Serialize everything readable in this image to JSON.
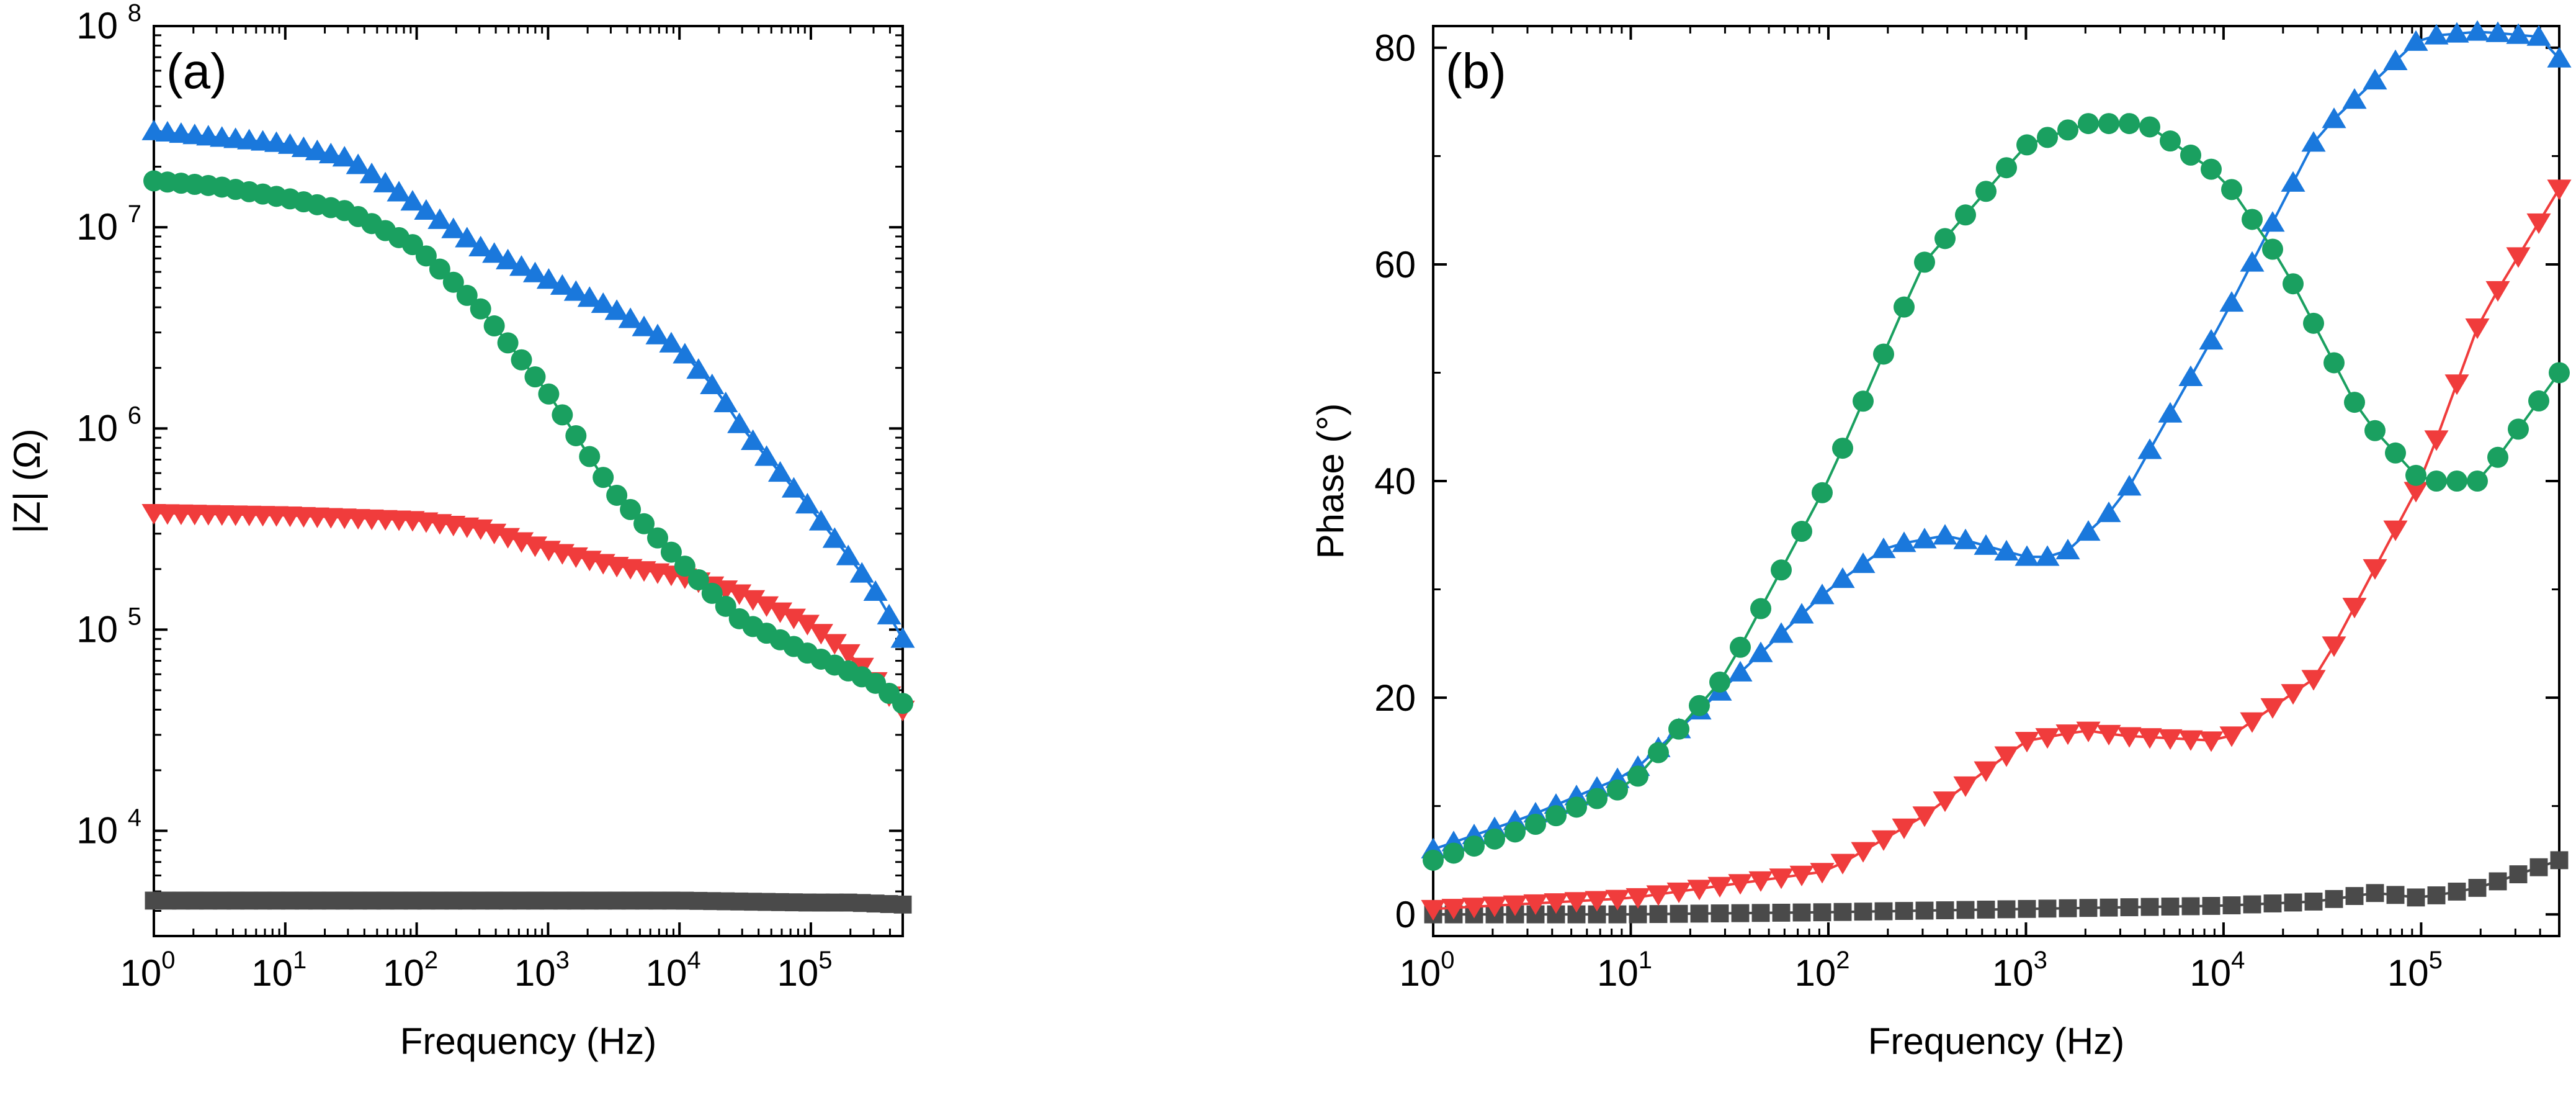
{
  "colors": {
    "black": "#4a4a4a",
    "red": "#f03c3c",
    "blue": "#1a78dc",
    "green": "#1aa060"
  },
  "chart_data": [
    {
      "type": "scatter",
      "panel_label": "(a)",
      "title": "",
      "xlabel": "Frequency (Hz)",
      "ylabel": "|Z| (Ω)",
      "xscale": "log",
      "yscale": "log",
      "xlim": [
        1,
        500000
      ],
      "ylim": [
        3000,
        100000000
      ],
      "x_ticks": [
        {
          "base": "10",
          "exp": "0",
          "value": 1
        },
        {
          "base": "10",
          "exp": "1",
          "value": 10
        },
        {
          "base": "10",
          "exp": "2",
          "value": 100
        },
        {
          "base": "10",
          "exp": "3",
          "value": 1000
        },
        {
          "base": "10",
          "exp": "4",
          "value": 10000
        },
        {
          "base": "10",
          "exp": "5",
          "value": 100000
        }
      ],
      "y_ticks": [
        {
          "base": "10",
          "exp": "4",
          "value": 10000
        },
        {
          "base": "10",
          "exp": "5",
          "value": 100000
        },
        {
          "base": "10",
          "exp": "6",
          "value": 1000000
        },
        {
          "base": "10",
          "exp": "7",
          "value": 10000000
        },
        {
          "base": "10",
          "exp": "8",
          "value": 100000000
        }
      ],
      "grid": false,
      "series": [
        {
          "name": "black",
          "marker": "square",
          "color": "#4a4a4a",
          "x": [
            1,
            10,
            100,
            1000,
            10000,
            100000,
            200000,
            500000
          ],
          "y": [
            4500,
            4500,
            4500,
            4500,
            4500,
            4400,
            4400,
            4300
          ]
        },
        {
          "name": "red",
          "marker": "triangle-down",
          "color": "#f03c3c",
          "x": [
            1,
            10,
            100,
            300,
            1000,
            3000,
            10000,
            30000,
            100000,
            200000,
            500000
          ],
          "y": [
            380000,
            370000,
            350000,
            320000,
            250000,
            210000,
            185000,
            150000,
            105000,
            75000,
            40000
          ]
        },
        {
          "name": "blue",
          "marker": "triangle-up",
          "color": "#1a78dc",
          "x": [
            1,
            3,
            10,
            30,
            100,
            300,
            1000,
            3000,
            10000,
            20000,
            30000,
            100000,
            300000,
            500000
          ],
          "y": [
            30000000,
            28000000,
            26000000,
            22000000,
            13000000,
            8000000,
            5500000,
            4000000,
            2500000,
            1500000,
            1000000,
            400000,
            160000,
            90000
          ]
        },
        {
          "name": "green",
          "marker": "circle",
          "color": "#1aa060",
          "x": [
            1,
            3,
            10,
            30,
            100,
            300,
            1000,
            3000,
            10000,
            20000,
            30000,
            100000,
            300000,
            500000
          ],
          "y": [
            17000000,
            16000000,
            14000000,
            12000000,
            8000000,
            4000000,
            1500000,
            500000,
            220000,
            140000,
            110000,
            75000,
            55000,
            43000
          ]
        }
      ]
    },
    {
      "type": "scatter",
      "panel_label": "(b)",
      "title": "",
      "xlabel": "Frequency (Hz)",
      "ylabel": "Phase (°)",
      "xscale": "log",
      "yscale": "linear",
      "xlim": [
        1,
        500000
      ],
      "ylim": [
        -2,
        82
      ],
      "x_ticks": [
        {
          "base": "10",
          "exp": "0",
          "value": 1
        },
        {
          "base": "10",
          "exp": "1",
          "value": 10
        },
        {
          "base": "10",
          "exp": "2",
          "value": 100
        },
        {
          "base": "10",
          "exp": "3",
          "value": 1000
        },
        {
          "base": "10",
          "exp": "4",
          "value": 10000
        },
        {
          "base": "10",
          "exp": "5",
          "value": 100000
        }
      ],
      "y_ticks": [
        {
          "label": "0",
          "value": 0
        },
        {
          "label": "20",
          "value": 20
        },
        {
          "label": "40",
          "value": 40
        },
        {
          "label": "60",
          "value": 60
        },
        {
          "label": "80",
          "value": 80
        }
      ],
      "grid": false,
      "series": [
        {
          "name": "black",
          "marker": "square",
          "color": "#4a4a4a",
          "x": [
            1,
            10,
            100,
            1000,
            10000,
            30000,
            60000,
            100000,
            200000,
            500000
          ],
          "y": [
            0,
            0,
            0.2,
            0.5,
            0.8,
            1.2,
            2,
            1.5,
            2.5,
            5
          ]
        },
        {
          "name": "red",
          "marker": "triangle-down",
          "color": "#f03c3c",
          "x": [
            1,
            10,
            100,
            300,
            1000,
            2000,
            3000,
            10000,
            30000,
            100000,
            200000,
            500000
          ],
          "y": [
            0.5,
            1.5,
            4,
            9,
            16,
            17,
            16.5,
            16,
            22,
            40,
            55,
            67
          ]
        },
        {
          "name": "blue",
          "marker": "triangle-up",
          "color": "#1a78dc",
          "x": [
            1,
            3,
            10,
            30,
            100,
            200,
            400,
            1000,
            1500,
            3000,
            10000,
            30000,
            100000,
            200000,
            400000,
            500000
          ],
          "y": [
            6,
            9,
            13,
            21,
            30,
            34,
            35,
            33,
            33,
            38,
            55,
            72,
            81,
            81.5,
            81,
            79
          ]
        },
        {
          "name": "green",
          "marker": "circle",
          "color": "#1aa060",
          "x": [
            1,
            3,
            10,
            30,
            100,
            300,
            1000,
            2000,
            4000,
            10000,
            20000,
            50000,
            100000,
            200000,
            500000
          ],
          "y": [
            5,
            8,
            12,
            22,
            40,
            60,
            71,
            73,
            73,
            68,
            60,
            46,
            40,
            40,
            50
          ]
        }
      ]
    }
  ]
}
